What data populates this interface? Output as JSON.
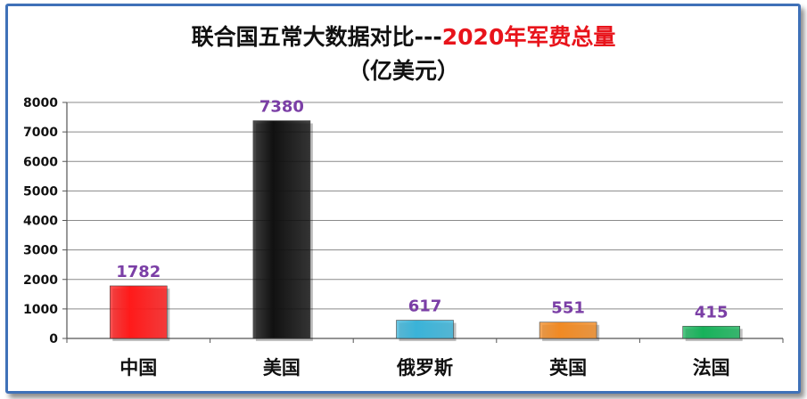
{
  "chart_data": {
    "type": "bar",
    "title_main": "联合国五常大数据对比---",
    "title_highlight": "2020年军费总量",
    "subtitle": "（亿美元）",
    "categories": [
      "中国",
      "美国",
      "俄罗斯",
      "英国",
      "法国"
    ],
    "values": [
      1782,
      7380,
      617,
      551,
      415
    ],
    "data_labels": [
      "1782",
      "7380",
      "617",
      "551",
      "415"
    ],
    "bar_colors": [
      "#ff1a1a",
      "#111111",
      "#3ab3d8",
      "#f08a24",
      "#17b25a"
    ],
    "ylim": [
      0,
      8000
    ],
    "yticks": [
      0,
      1000,
      2000,
      3000,
      4000,
      5000,
      6000,
      7000,
      8000
    ],
    "grid": true,
    "label_color": "#7b3fa6",
    "title_highlight_color": "#e8141b"
  }
}
